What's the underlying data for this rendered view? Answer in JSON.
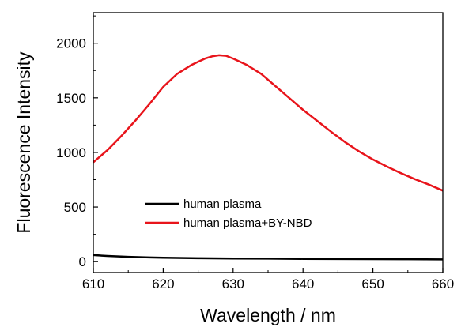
{
  "chart_data": {
    "type": "line",
    "xlabel": "Wavelength / nm",
    "ylabel": "Fluorescence Intensity",
    "xlim": [
      610,
      660
    ],
    "ylim": [
      -100,
      2280
    ],
    "x_ticks": [
      610,
      620,
      630,
      640,
      650,
      660
    ],
    "y_ticks": [
      0,
      500,
      1000,
      1500,
      2000
    ],
    "x_tick_labels": [
      "610",
      "620",
      "630",
      "640",
      "650",
      "660"
    ],
    "y_tick_labels": [
      "0",
      "500",
      "1000",
      "1500",
      "2000"
    ],
    "grid": false,
    "legend_position": "center-left",
    "series": [
      {
        "name": "human plasma",
        "color": "#000000",
        "x": [
          610,
          612,
          615,
          618,
          620,
          625,
          630,
          635,
          640,
          645,
          650,
          655,
          660
        ],
        "y": [
          60,
          52,
          44,
          38,
          35,
          31,
          29,
          27,
          25,
          24,
          23,
          22,
          20
        ]
      },
      {
        "name": "human plasma+BY-NBD",
        "color": "#e8141b",
        "x": [
          610,
          612,
          614,
          616,
          618,
          620,
          622,
          624,
          626,
          627,
          628,
          629,
          630,
          632,
          634,
          636,
          638,
          640,
          642,
          644,
          646,
          648,
          650,
          652,
          654,
          656,
          658,
          660
        ],
        "y": [
          910,
          1020,
          1150,
          1290,
          1440,
          1600,
          1720,
          1800,
          1860,
          1880,
          1890,
          1885,
          1860,
          1800,
          1720,
          1610,
          1500,
          1390,
          1290,
          1190,
          1095,
          1010,
          935,
          870,
          810,
          755,
          705,
          650
        ]
      }
    ]
  }
}
